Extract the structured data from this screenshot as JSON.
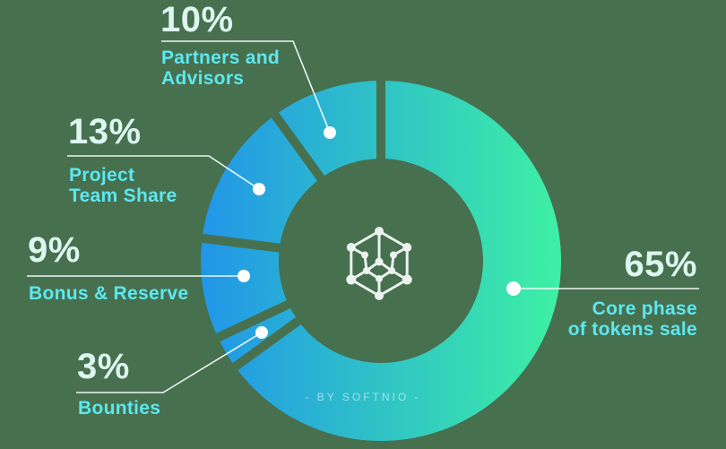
{
  "chart_data": {
    "type": "pie",
    "variant": "donut",
    "title": "",
    "start_angle_deg": 0,
    "direction": "clockwise",
    "segments": [
      {
        "key": "core",
        "label": "Core phase of tokens sale",
        "value": 65
      },
      {
        "key": "bounties",
        "label": "Bounties",
        "value": 3
      },
      {
        "key": "bonus",
        "label": "Bonus & Reserve",
        "value": 9
      },
      {
        "key": "team",
        "label": "Project Team Share",
        "value": 13
      },
      {
        "key": "partners",
        "label": "Partners and Advisors",
        "value": 10
      }
    ],
    "values_unit": "%",
    "total": 100,
    "center_icon": "hexagon-network-icon",
    "watermark": "- BY SOFTNIO -"
  },
  "callouts": {
    "partners": {
      "pct": "10%",
      "lines": [
        "Partners and",
        "Advisors"
      ]
    },
    "team": {
      "pct": "13%",
      "lines": [
        "Project",
        "Team Share"
      ]
    },
    "bonus": {
      "pct": "9%",
      "lines": [
        "Bonus & Reserve"
      ]
    },
    "bounties": {
      "pct": "3%",
      "lines": [
        "Bounties"
      ]
    },
    "core": {
      "pct": "65%",
      "lines": [
        "Core phase",
        "of tokens sale"
      ]
    }
  },
  "colors": {
    "background": "#47704f",
    "percent_text": "#ddf6ef",
    "label_text": "#5ce8f0",
    "leader_line": "#f5fdfb",
    "dot": "#ffffff",
    "gradient_start": "#2196e8",
    "gradient_end": "#3ef0a4",
    "icon": "#f4fbf9"
  }
}
